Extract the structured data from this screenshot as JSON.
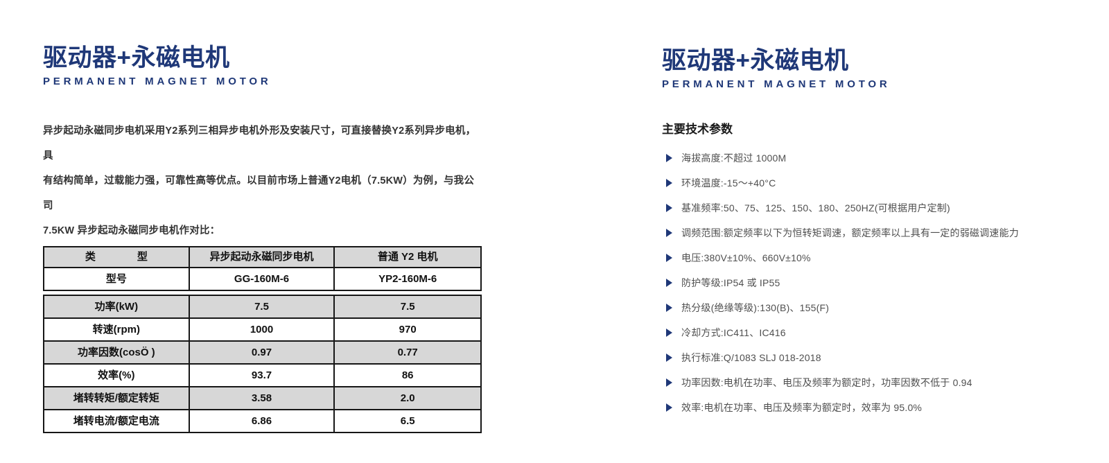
{
  "brand": {
    "title_zh": "驱动器+永磁电机",
    "title_en": "PERMANENT MAGNET MOTOR"
  },
  "left_page": {
    "intro_lines": [
      "异步起动永磁同步电机采用Y2系列三相异步电机外形及安装尺寸，可直接替换Y2系列异步电机，具",
      "有结构简单，过载能力强，可靠性高等优点。以目前市场上普通Y2电机（7.5KW）为例，与我公司",
      "7.5KW 异步起动永磁同步电机作对比："
    ],
    "table": {
      "columns": [
        "类　　　　型",
        "异步起动永磁同步电机",
        "普通 Y2 电机"
      ],
      "groups": [
        {
          "rows": [
            [
              "型号",
              "GG-160M-6",
              "YP2-160M-6"
            ]
          ]
        },
        {
          "rows": [
            [
              "功率(kW)",
              "7.5",
              "7.5"
            ],
            [
              "转速(rpm)",
              "1000",
              "970"
            ],
            [
              "功率因数(cosÖ )",
              "0.97",
              "0.77"
            ],
            [
              "效率(%)",
              "93.7",
              "86"
            ],
            [
              "堵转转矩/额定转矩",
              "3.58",
              "2.0"
            ],
            [
              "堵转电流/额定电流",
              "6.86",
              "6.5"
            ]
          ]
        }
      ]
    }
  },
  "right_page": {
    "params_heading": "主要技术参数",
    "params": [
      "海拔高度:不超过 1000M",
      "环境温度:-15～+40°C",
      "基准频率:50、75、125、150、180、250HZ(可根据用户定制)",
      "调频范围:额定频率以下为恒转矩调速，额定频率以上具有一定的弱磁调速能力",
      "电压:380V±10%、660V±10%",
      "防护等级:IP54 或 IP55",
      "热分级(绝缘等级):130(B)、155(F)",
      "冷却方式:IC411、IC416",
      "执行标准:Q/1083 SLJ 018-2018",
      "功率因数:电机在功率、电压及频率为额定时，功率因数不低于 0.94",
      "效率:电机在功率、电压及频率为额定时，效率为 95.0%"
    ]
  },
  "colors": {
    "accent_navy": "#1f3878",
    "table_header_gray": "#d7d7d7",
    "table_border": "#161616",
    "body_text_gray": "#4f4f4f"
  }
}
